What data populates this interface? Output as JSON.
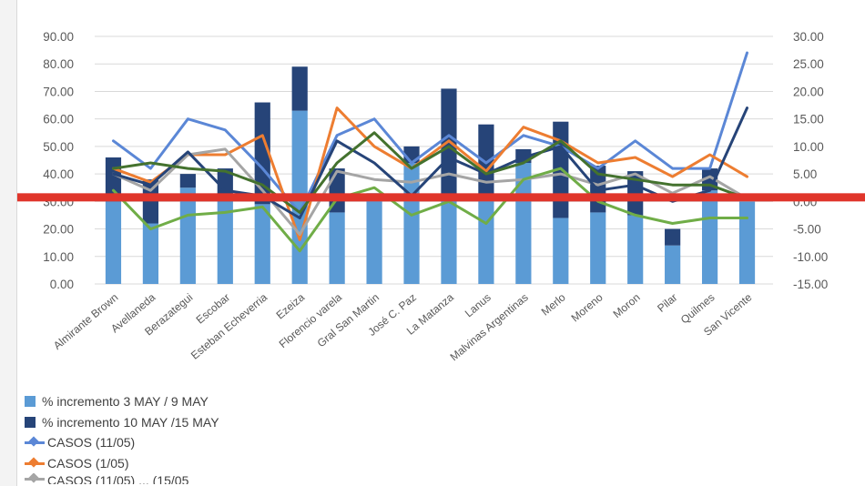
{
  "chart_data": {
    "type": "bar",
    "categories": [
      "Almirante Brown",
      "Avellaneda",
      "Berazategui",
      "Escobar",
      "Esteban Echeverria",
      "Ezeiza",
      "Florencio varela",
      "Gral San Martin",
      "José C. Paz",
      "La Matanza",
      "Lanus",
      "Malvinas Argentinas",
      "Merlo",
      "Moreno",
      "Moron",
      "Pilar",
      "Quilmes",
      "San Vicente"
    ],
    "left_axis": {
      "ticks": [
        "90.00",
        "80.00",
        "70.00",
        "60.00",
        "50.00",
        "40.00",
        "30.00",
        "20.00",
        "10.00",
        "0.00"
      ],
      "ylim": [
        0,
        90
      ]
    },
    "right_axis": {
      "ticks": [
        "30.00",
        "25.00",
        "20.00",
        "15.00",
        "10.00",
        "5.00",
        "0.00",
        "-5.00",
        "-10.00",
        "-15.00"
      ],
      "ylim": [
        -15,
        30
      ]
    },
    "bars": [
      {
        "name": "% incremento 3 MAY / 9 MAY",
        "color": "#5b9bd5",
        "values": [
          30,
          22,
          35,
          30,
          29,
          63,
          26,
          33,
          44,
          31,
          32,
          44,
          24,
          26,
          25,
          14,
          34,
          30
        ]
      },
      {
        "name": "% incremento 10 MAY /15 MAY",
        "color": "#264478",
        "values": [
          16,
          16,
          5,
          12,
          37,
          16,
          16,
          0,
          6,
          40,
          26,
          5,
          35,
          17,
          16,
          6,
          8,
          0
        ]
      }
    ],
    "lines": [
      {
        "name": "CASOS (11/05)",
        "color": "#5b87d6",
        "axis": "right",
        "values": [
          11,
          6,
          15,
          13,
          6,
          -2,
          12,
          15,
          7,
          12,
          7,
          12,
          10,
          6,
          11,
          6,
          6,
          27
        ]
      },
      {
        "name": "CASOS (1/05)",
        "color": "#ed7d31",
        "axis": "right",
        "values": [
          6,
          3.5,
          8.5,
          8.5,
          12,
          -7,
          17,
          10,
          6,
          11,
          5.5,
          13.5,
          11,
          7,
          8,
          4.5,
          8.5,
          4.5
        ]
      },
      {
        "name": "CASOS",
        "color": "#a5a5a5",
        "axis": "right",
        "values": [
          5,
          2,
          8.5,
          9.5,
          2,
          -6,
          5.5,
          4,
          3.5,
          5,
          3.5,
          4,
          5,
          3,
          5,
          1.5,
          4.5,
          0.5
        ]
      },
      {
        "name": "",
        "color": "#264478",
        "axis": "right",
        "values": [
          5,
          3,
          9,
          2,
          1,
          -3,
          11,
          7,
          1,
          8,
          5,
          8,
          10,
          2,
          3,
          0,
          2,
          17
        ]
      },
      {
        "name": "",
        "color": "#44722e",
        "axis": "right",
        "values": [
          6,
          7,
          6,
          5.5,
          3,
          -2,
          7,
          12.5,
          6,
          10,
          5,
          7,
          11,
          5,
          4,
          3,
          3,
          0.5
        ]
      },
      {
        "name": "",
        "color": "#70ad47",
        "axis": "right",
        "values": [
          2,
          -5,
          -2.5,
          -2,
          -1,
          -9,
          0.5,
          2.5,
          -2.5,
          0,
          -4,
          4,
          6,
          0,
          -2.5,
          -4,
          -3,
          -3
        ]
      }
    ],
    "threshold_line": {
      "axis": "left",
      "value": 30,
      "color": "#e0352b"
    },
    "legend_truncated_text": "CASOS (11/05) ... (15/05"
  }
}
